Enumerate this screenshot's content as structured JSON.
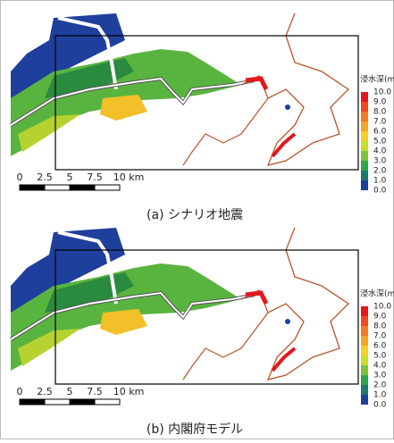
{
  "panels": [
    {
      "caption": "(a) シナリオ地震"
    },
    {
      "caption": "(b) 内閣府モデル"
    }
  ],
  "legend": {
    "title": "浸水深(m",
    "labels": [
      "10.0",
      "9.0",
      "8.0",
      "7.0",
      "6.0",
      "5.0",
      "4.0",
      "3.0",
      "2.0",
      "1.0",
      "0.0"
    ],
    "colors": [
      "#e3171d",
      "#ee4a1e",
      "#f37a22",
      "#f5a524",
      "#f4d028",
      "#c9db2d",
      "#7cc33b",
      "#2fa64a",
      "#1b7a6a",
      "#1d3f9c"
    ]
  },
  "scale_bar": {
    "labels": [
      "0",
      "2.5",
      "5",
      "7.5",
      "10 km"
    ]
  }
}
